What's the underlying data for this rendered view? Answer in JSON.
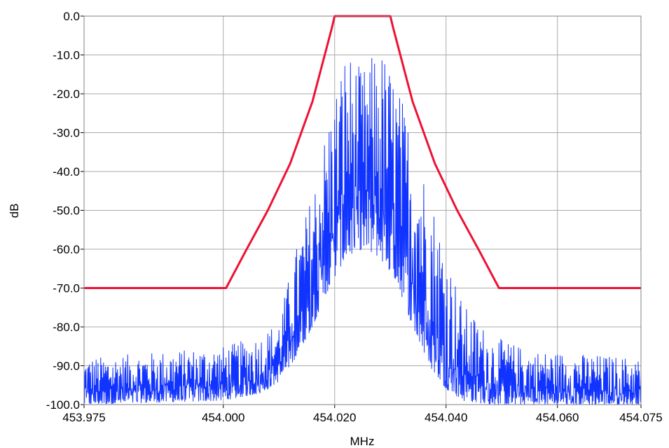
{
  "chart_data": {
    "type": "line",
    "title": "",
    "xlabel": "MHz",
    "ylabel": "dB",
    "xlim": [
      453.975,
      454.075
    ],
    "ylim": [
      -100,
      0
    ],
    "grid": true,
    "x_ticks": [
      {
        "value": 453.975,
        "label": "453.975"
      },
      {
        "value": 454.0,
        "label": "454.000"
      },
      {
        "value": 454.02,
        "label": "454.020"
      },
      {
        "value": 454.04,
        "label": "454.040"
      },
      {
        "value": 454.06,
        "label": "454.060"
      },
      {
        "value": 454.075,
        "label": "454.075"
      }
    ],
    "y_ticks": [
      {
        "value": 0,
        "label": "0.0"
      },
      {
        "value": -10,
        "label": "-10.0"
      },
      {
        "value": -20,
        "label": "-20.0"
      },
      {
        "value": -30,
        "label": "-30.0"
      },
      {
        "value": -40,
        "label": "-40.0"
      },
      {
        "value": -50,
        "label": "-50.0"
      },
      {
        "value": -60,
        "label": "-60.0"
      },
      {
        "value": -70,
        "label": "-70.0"
      },
      {
        "value": -80,
        "label": "-80.0"
      },
      {
        "value": -90,
        "label": "-90.0"
      },
      {
        "value": -100,
        "label": "-100.0"
      }
    ],
    "colors": {
      "mask": "#ee1133",
      "spectrum": "#1133ff",
      "grid": "#aaaaaa"
    },
    "series": [
      {
        "role": "mask",
        "x": [
          453.975,
          454.0005,
          454.004,
          454.008,
          454.012,
          454.016,
          454.0195,
          454.02,
          454.03,
          454.0305,
          454.034,
          454.038,
          454.042,
          454.046,
          454.0495,
          454.075
        ],
        "y": [
          -70,
          -70,
          -60.5,
          -50,
          -38,
          -22,
          -3,
          0,
          0,
          -3,
          -22,
          -38,
          -50,
          -60.5,
          -70,
          -70
        ]
      },
      {
        "role": "spectrum",
        "x_start": 453.975,
        "x_end": 454.075,
        "envelope": {
          "x": [
            453.975,
            454.0,
            454.007,
            454.01,
            454.013,
            454.016,
            454.019,
            454.022,
            454.025,
            454.028,
            454.031,
            454.034,
            454.037,
            454.04,
            454.043,
            454.048,
            454.055,
            454.075
          ],
          "peak": [
            -88,
            -85,
            -82,
            -78,
            -60,
            -45,
            -25,
            -8,
            -14,
            -7,
            -16,
            -30,
            -44,
            -60,
            -74,
            -82,
            -86,
            -88
          ],
          "floor": [
            -100,
            -99,
            -97,
            -94,
            -88,
            -80,
            -70,
            -62,
            -60,
            -62,
            -68,
            -80,
            -90,
            -96,
            -99,
            -100,
            -100,
            -100
          ]
        }
      }
    ]
  }
}
